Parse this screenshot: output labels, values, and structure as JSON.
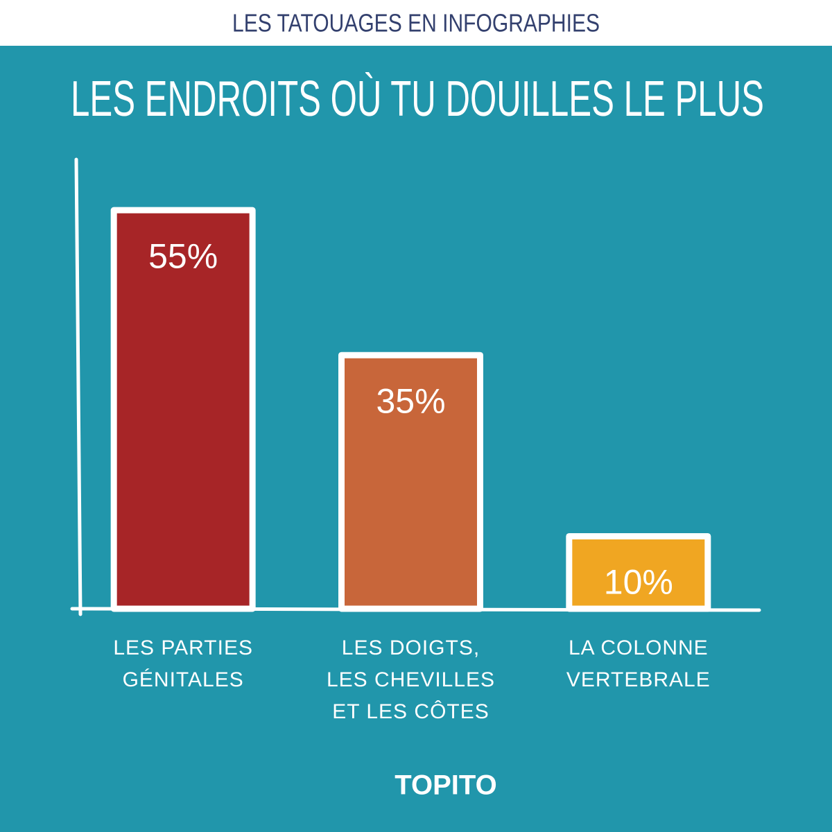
{
  "header": "LES TATOUAGES EN INFOGRAPHIES",
  "brand": "TOPITO",
  "chart_data": {
    "type": "bar",
    "title": "LES ENDROITS OÙ TU DOUILLES LE PLUS",
    "categories": [
      "LES PARTIES GÉNITALES",
      "LES DOIGTS, LES CHEVILLES ET LES CÔTES",
      "LA COLONNE VERTEBRALE"
    ],
    "values": [
      55,
      35,
      10
    ],
    "value_labels": [
      "55%",
      "35%",
      "10%"
    ],
    "colors": [
      "#a72527",
      "#c8663a",
      "#f0a622"
    ],
    "ylim": [
      0,
      62
    ]
  }
}
